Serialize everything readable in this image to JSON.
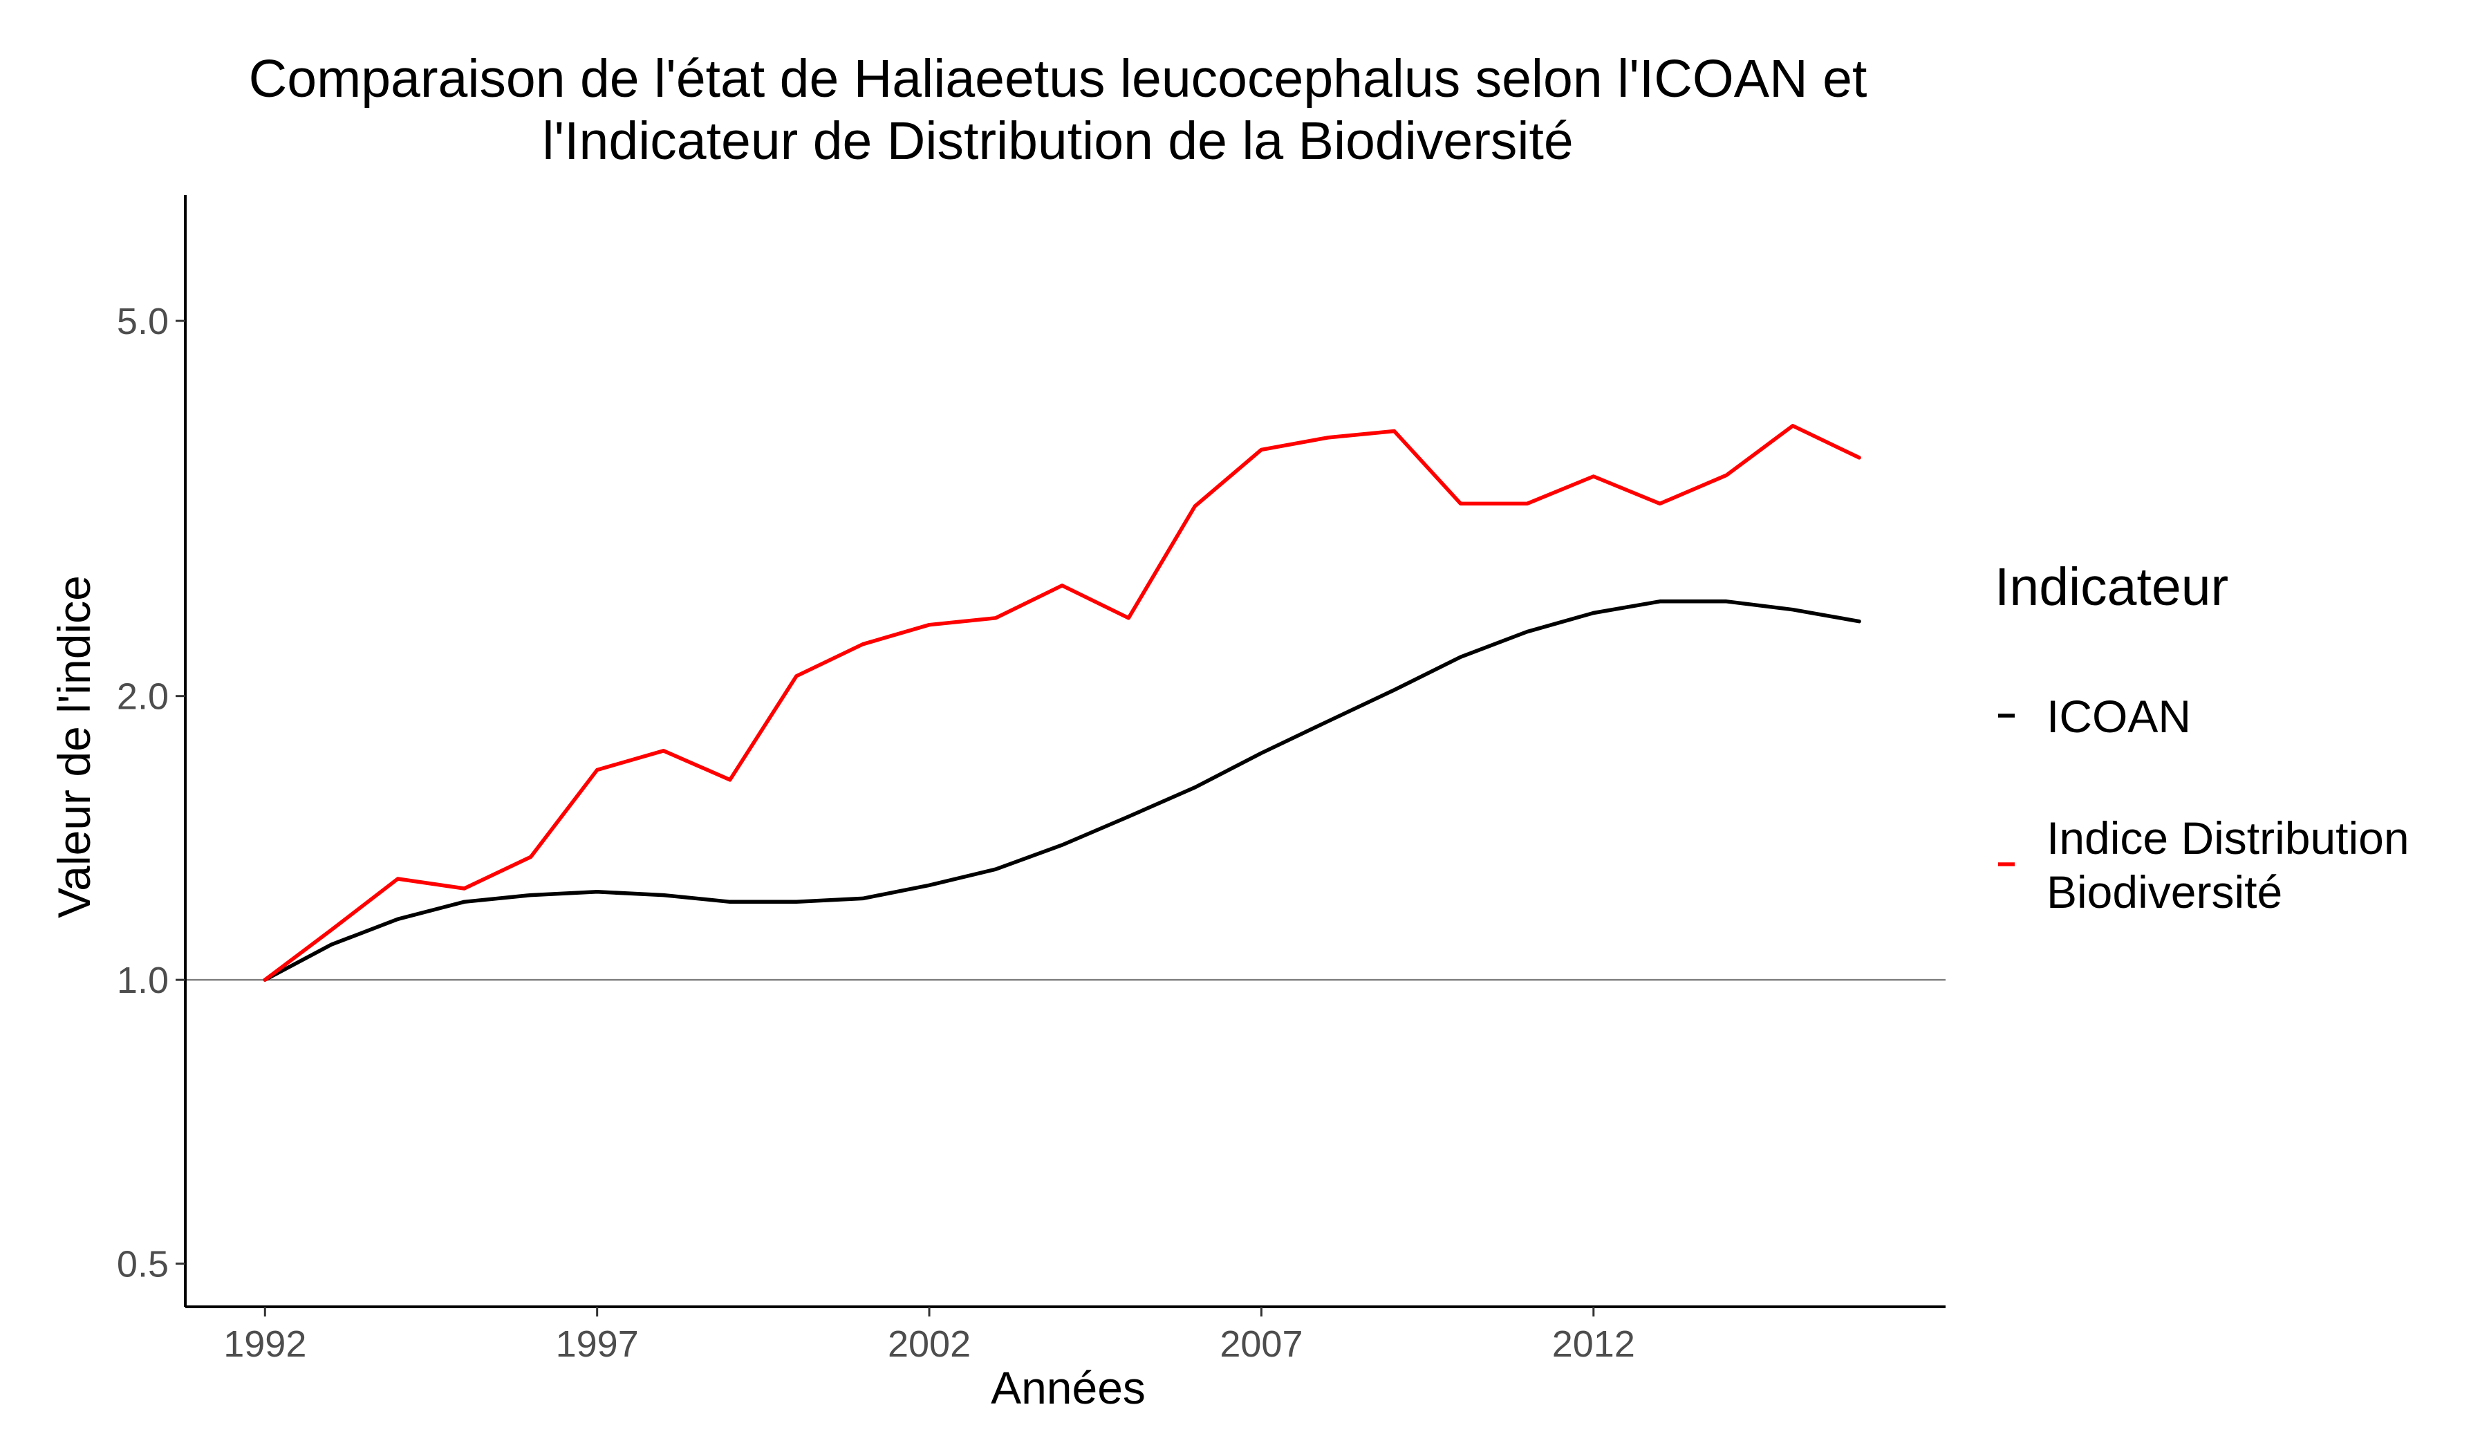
{
  "chart_data": {
    "type": "line",
    "title": [
      "Comparaison de l'état de Haliaeetus leucocephalus selon l'ICOAN et",
      "l'Indicateur de Distribution de la Biodiversité"
    ],
    "xlabel": "Années",
    "ylabel": "Valeur de l'indice",
    "y_scale": "log",
    "ylim": [
      0.45,
      6.8
    ],
    "xlim": [
      1990.8,
      2017.3
    ],
    "x_ticks": [
      1992,
      1997,
      2002,
      2007,
      2012
    ],
    "x_tick_labels": [
      "1992",
      "1997",
      "2002",
      "2007",
      "2012"
    ],
    "y_ticks": [
      0.5,
      1.0,
      2.0,
      5.0
    ],
    "y_tick_labels": [
      "0.5",
      "1.0",
      "2.0",
      "5.0"
    ],
    "reference_line_y": 1.0,
    "grid": false,
    "legend": {
      "title": "Indicateur",
      "position": "right"
    },
    "x": [
      1992,
      1993,
      1994,
      1995,
      1996,
      1997,
      1998,
      1999,
      2000,
      2001,
      2002,
      2003,
      2004,
      2005,
      2006,
      2007,
      2008,
      2009,
      2010,
      2011,
      2012,
      2013,
      2014,
      2015,
      2016
    ],
    "series": [
      {
        "name": "ICOAN",
        "label_lines": [
          "ICOAN"
        ],
        "color": "#000000",
        "values": [
          1.0,
          1.09,
          1.16,
          1.21,
          1.23,
          1.24,
          1.23,
          1.21,
          1.21,
          1.22,
          1.26,
          1.31,
          1.39,
          1.49,
          1.6,
          1.74,
          1.88,
          2.03,
          2.2,
          2.34,
          2.45,
          2.52,
          2.52,
          2.47,
          2.4
        ]
      },
      {
        "name": "Indice Distribution Biodiversité",
        "label_lines": [
          "Indice Distribution",
          "Biodiversité"
        ],
        "color": "#ff0000",
        "values": [
          1.0,
          1.13,
          1.28,
          1.25,
          1.35,
          1.67,
          1.75,
          1.63,
          2.1,
          2.27,
          2.38,
          2.42,
          2.62,
          2.42,
          3.18,
          3.65,
          3.76,
          3.82,
          3.2,
          3.2,
          3.42,
          3.2,
          3.43,
          3.87,
          3.58
        ]
      }
    ]
  }
}
